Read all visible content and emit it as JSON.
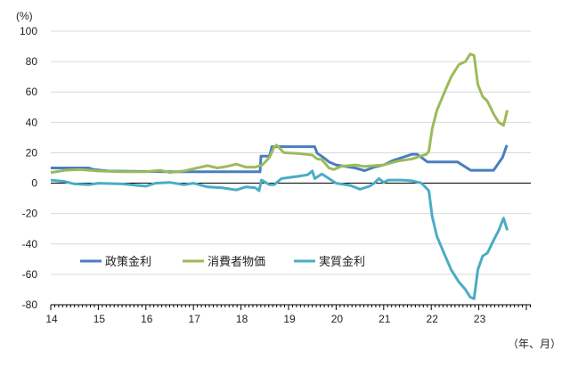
{
  "chart_data": {
    "type": "line",
    "title": "",
    "ylabel": "(%)",
    "xlabel": "（年、月）",
    "ylim": [
      -80,
      100
    ],
    "yticks": [
      100,
      80,
      60,
      40,
      20,
      0,
      -20,
      -40,
      -60,
      -80
    ],
    "xlim": [
      2014,
      2024.1
    ],
    "xticks": [
      {
        "t": 2014,
        "label": "14"
      },
      {
        "t": 2015,
        "label": "15"
      },
      {
        "t": 2016,
        "label": "16"
      },
      {
        "t": 2017,
        "label": "17"
      },
      {
        "t": 2018,
        "label": "18"
      },
      {
        "t": 2019,
        "label": "19"
      },
      {
        "t": 2020,
        "label": "20"
      },
      {
        "t": 2021,
        "label": "21"
      },
      {
        "t": 2022,
        "label": "22"
      },
      {
        "t": 2023,
        "label": "23"
      }
    ],
    "grid": true,
    "legend_position": "bottom-left-inside",
    "series": [
      {
        "name": "政策金利",
        "color": "#4a7ebf",
        "points": [
          [
            2014,
            10
          ],
          [
            2014.8,
            10
          ],
          [
            2014.9,
            9
          ],
          [
            2015.2,
            8
          ],
          [
            2016.5,
            7.5
          ],
          [
            2018.4,
            7.5
          ],
          [
            2018.42,
            17.75
          ],
          [
            2018.6,
            17.75
          ],
          [
            2018.65,
            24
          ],
          [
            2019.55,
            24
          ],
          [
            2019.6,
            19.75
          ],
          [
            2019.75,
            16.5
          ],
          [
            2019.85,
            14
          ],
          [
            2020,
            12
          ],
          [
            2020.4,
            10
          ],
          [
            2020.6,
            8.25
          ],
          [
            2020.8,
            10.5
          ],
          [
            2021,
            12
          ],
          [
            2021.2,
            15
          ],
          [
            2021.4,
            17
          ],
          [
            2021.6,
            19
          ],
          [
            2021.7,
            19
          ],
          [
            2021.92,
            14
          ],
          [
            2022.55,
            14
          ],
          [
            2022.83,
            8.5
          ],
          [
            2023.31,
            8.5
          ],
          [
            2023.5,
            17
          ],
          [
            2023.59,
            25
          ]
        ]
      },
      {
        "name": "消費者物価",
        "color": "#9bbb59",
        "points": [
          [
            2014,
            7
          ],
          [
            2014.3,
            8.5
          ],
          [
            2014.6,
            9
          ],
          [
            2015,
            8
          ],
          [
            2015.5,
            7.5
          ],
          [
            2016,
            7.5
          ],
          [
            2016.3,
            8.5
          ],
          [
            2016.5,
            7
          ],
          [
            2016.8,
            8
          ],
          [
            2017,
            9.5
          ],
          [
            2017.3,
            11.5
          ],
          [
            2017.5,
            10
          ],
          [
            2017.7,
            11
          ],
          [
            2017.9,
            12.5
          ],
          [
            2018.1,
            10.5
          ],
          [
            2018.3,
            10.5
          ],
          [
            2018.45,
            12
          ],
          [
            2018.6,
            17
          ],
          [
            2018.7,
            24
          ],
          [
            2018.75,
            25
          ],
          [
            2018.9,
            20
          ],
          [
            2019.2,
            19.5
          ],
          [
            2019.5,
            18.5
          ],
          [
            2019.6,
            16
          ],
          [
            2019.7,
            15.5
          ],
          [
            2019.85,
            10
          ],
          [
            2019.95,
            9
          ],
          [
            2020.1,
            11
          ],
          [
            2020.4,
            12
          ],
          [
            2020.6,
            11
          ],
          [
            2020.8,
            11.5
          ],
          [
            2021,
            12
          ],
          [
            2021.3,
            14.5
          ],
          [
            2021.6,
            16
          ],
          [
            2021.9,
            19
          ],
          [
            2021.95,
            21
          ],
          [
            2022.02,
            36
          ],
          [
            2022.12,
            48
          ],
          [
            2022.28,
            60
          ],
          [
            2022.42,
            70
          ],
          [
            2022.58,
            78
          ],
          [
            2022.72,
            80
          ],
          [
            2022.82,
            85
          ],
          [
            2022.9,
            84
          ],
          [
            2022.98,
            65
          ],
          [
            2023.08,
            57
          ],
          [
            2023.18,
            54
          ],
          [
            2023.32,
            45
          ],
          [
            2023.42,
            40
          ],
          [
            2023.52,
            38
          ],
          [
            2023.6,
            48
          ]
        ]
      },
      {
        "name": "実質金利",
        "color": "#4bacc6",
        "points": [
          [
            2014,
            2
          ],
          [
            2014.3,
            1
          ],
          [
            2014.5,
            -0.5
          ],
          [
            2014.8,
            -1
          ],
          [
            2015,
            0
          ],
          [
            2015.5,
            -0.5
          ],
          [
            2016,
            -2
          ],
          [
            2016.2,
            0
          ],
          [
            2016.5,
            0.5
          ],
          [
            2016.8,
            -1
          ],
          [
            2017,
            0
          ],
          [
            2017.3,
            -2.5
          ],
          [
            2017.6,
            -3
          ],
          [
            2017.9,
            -4.5
          ],
          [
            2018.1,
            -2.5
          ],
          [
            2018.3,
            -3
          ],
          [
            2018.38,
            -5
          ],
          [
            2018.43,
            2
          ],
          [
            2018.6,
            -1
          ],
          [
            2018.7,
            -1
          ],
          [
            2018.85,
            3
          ],
          [
            2019.2,
            4.5
          ],
          [
            2019.4,
            5.5
          ],
          [
            2019.5,
            8
          ],
          [
            2019.55,
            3
          ],
          [
            2019.7,
            6
          ],
          [
            2019.85,
            3
          ],
          [
            2020,
            0
          ],
          [
            2020.3,
            -1.5
          ],
          [
            2020.5,
            -4
          ],
          [
            2020.7,
            -2
          ],
          [
            2020.8,
            0
          ],
          [
            2020.9,
            3
          ],
          [
            2021,
            0.5
          ],
          [
            2021.1,
            2
          ],
          [
            2021.4,
            2
          ],
          [
            2021.6,
            1.5
          ],
          [
            2021.8,
            0
          ],
          [
            2021.95,
            -5
          ],
          [
            2022.02,
            -22
          ],
          [
            2022.12,
            -35
          ],
          [
            2022.28,
            -47
          ],
          [
            2022.42,
            -57
          ],
          [
            2022.58,
            -65
          ],
          [
            2022.72,
            -70
          ],
          [
            2022.82,
            -75
          ],
          [
            2022.9,
            -76
          ],
          [
            2022.98,
            -57
          ],
          [
            2023.08,
            -48
          ],
          [
            2023.18,
            -46
          ],
          [
            2023.32,
            -37
          ],
          [
            2023.42,
            -31
          ],
          [
            2023.52,
            -23
          ],
          [
            2023.6,
            -31
          ]
        ]
      }
    ]
  }
}
